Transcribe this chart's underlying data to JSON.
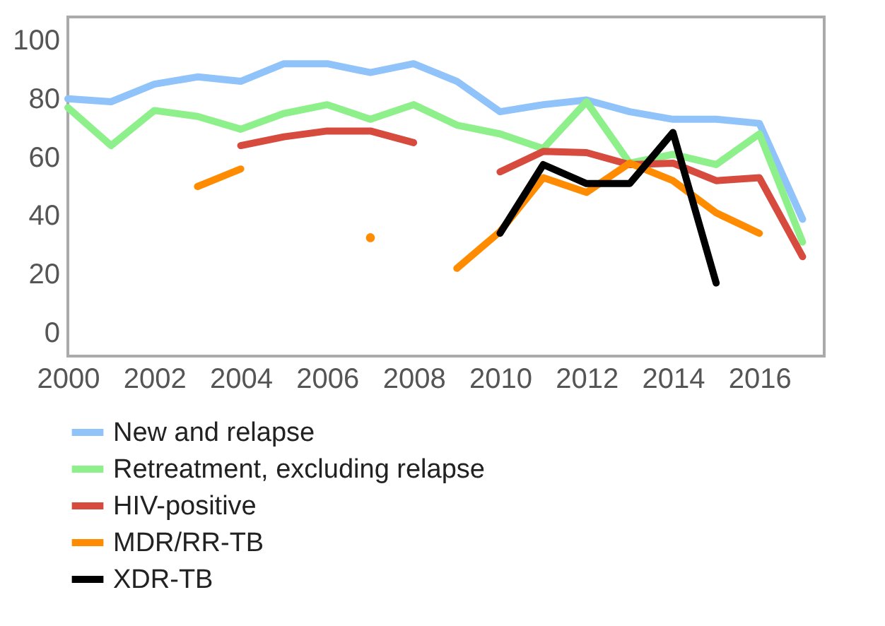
{
  "chart_data": {
    "type": "line",
    "x": [
      2000,
      2001,
      2002,
      2003,
      2004,
      2005,
      2006,
      2007,
      2008,
      2009,
      2010,
      2011,
      2012,
      2013,
      2014,
      2015,
      2016,
      2017
    ],
    "xlim": [
      2000,
      2017.5
    ],
    "xticks": [
      2000,
      2002,
      2004,
      2006,
      2008,
      2010,
      2012,
      2014,
      2016
    ],
    "ylim": [
      -8,
      108
    ],
    "yticks": [
      0,
      20,
      40,
      60,
      80,
      100
    ],
    "grid": false,
    "legend": "bottom",
    "series": [
      {
        "name": "New and relapse",
        "color": "#90c3f9",
        "values": [
          80,
          79,
          85,
          87.5,
          86,
          92,
          92,
          89,
          92,
          86,
          75.6,
          78,
          79.6,
          75.6,
          73,
          73,
          71.6,
          38.8
        ]
      },
      {
        "name": "Retreatment, excluding relapse",
        "color": "#8ef08a",
        "values": [
          77,
          64,
          76,
          74,
          69.6,
          75,
          78,
          73,
          78,
          71,
          68,
          63,
          79,
          58,
          61,
          57.5,
          68,
          31
        ]
      },
      {
        "name": "HIV-positive",
        "color": "#d64b3e",
        "values": [
          null,
          null,
          null,
          null,
          64,
          67,
          69,
          69,
          65,
          null,
          55,
          62,
          61.6,
          57.5,
          58,
          52,
          53,
          26
        ]
      },
      {
        "name": "MDR/RR-TB",
        "color": "#ff8c00",
        "values": [
          null,
          null,
          null,
          50,
          56,
          null,
          null,
          32.5,
          null,
          22,
          34.6,
          53,
          48,
          58,
          52,
          41,
          34,
          null
        ]
      },
      {
        "name": "XDR-TB",
        "color": "#000000",
        "values": [
          null,
          null,
          null,
          null,
          null,
          null,
          null,
          null,
          null,
          null,
          34,
          57.5,
          51,
          51,
          68.5,
          17,
          null,
          null
        ]
      }
    ]
  }
}
